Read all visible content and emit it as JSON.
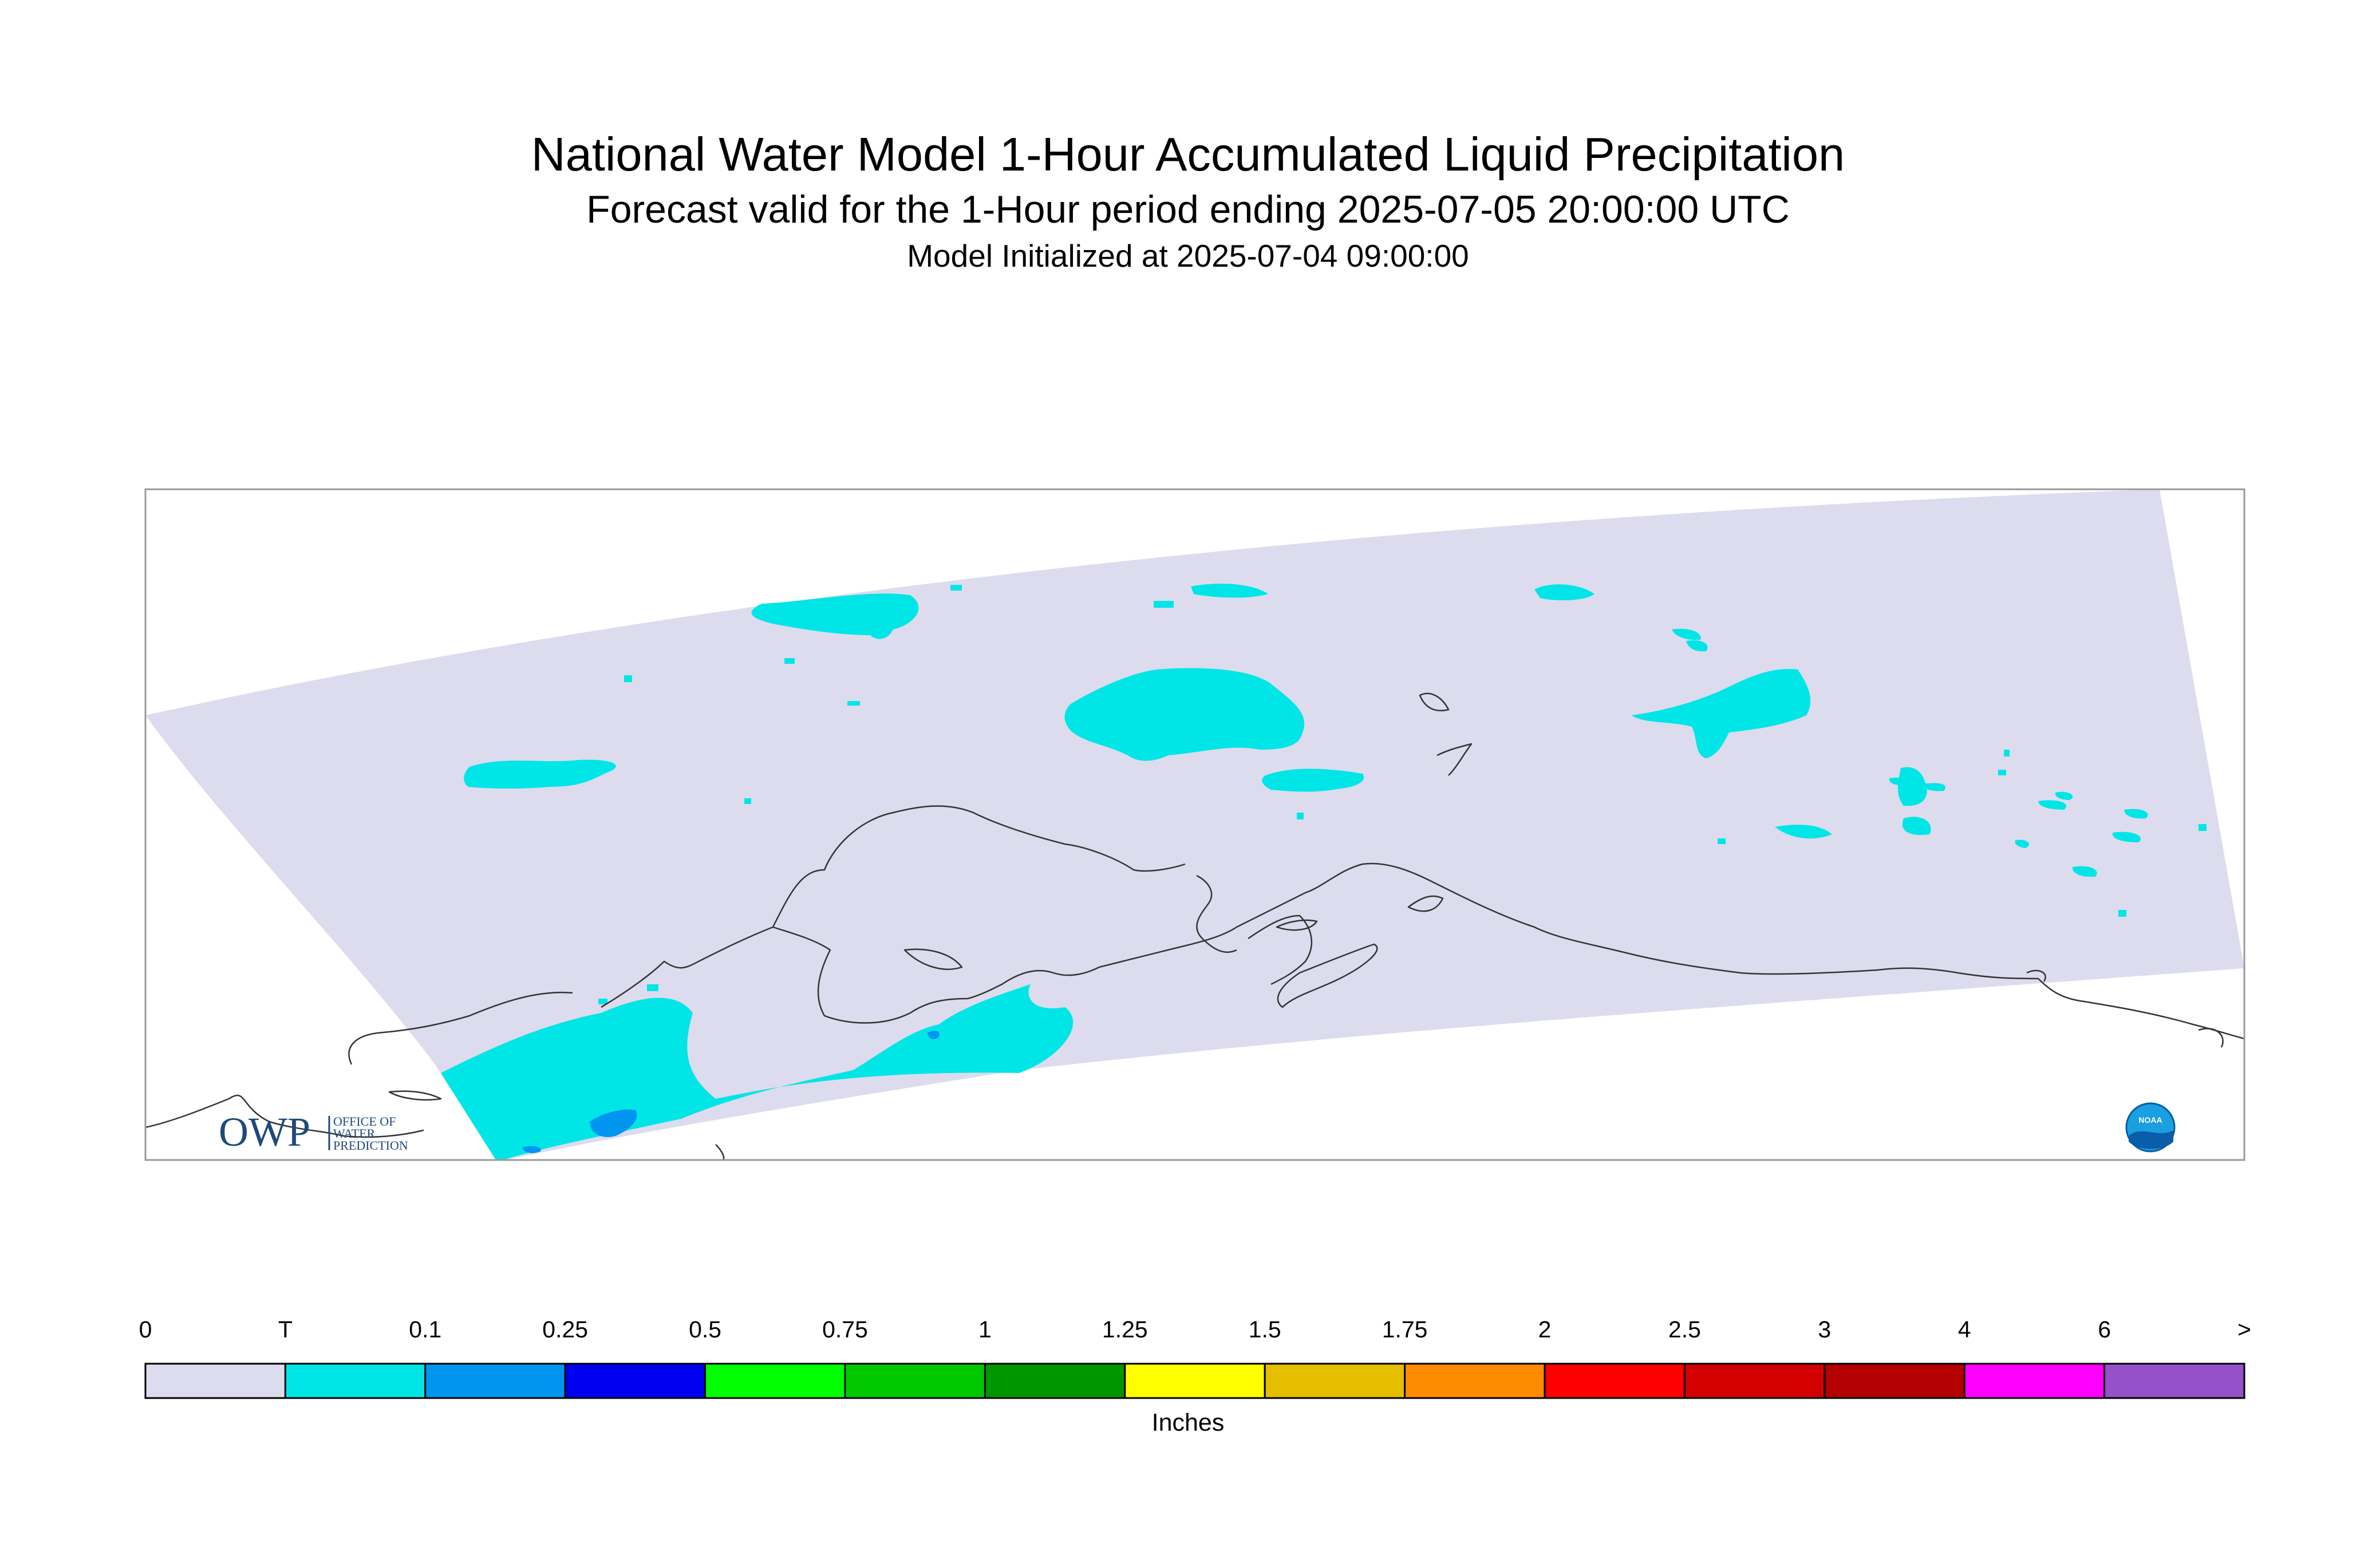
{
  "title": "National Water Model 1-Hour Accumulated Liquid Precipitation",
  "subtitle": "Forecast valid for the 1-Hour period ending 2025-07-05 20:00:00 UTC",
  "initialized": "Model Initialized at 2025-07-04 09:00:00",
  "logos": {
    "owp_mark": "OWP",
    "owp_line1": "OFFICE OF",
    "owp_line2": "WATER",
    "owp_line3": "PREDICTION",
    "noaa": "NOAA"
  },
  "colors": {
    "no_precip": "#dcdcee",
    "trace": "#00e6e6",
    "light": "#0096f0",
    "outline": "#333333"
  },
  "legend": {
    "units": "Inches",
    "labels": [
      "0",
      "T",
      "0.1",
      "0.25",
      "0.5",
      "0.75",
      "1",
      "1.25",
      "1.5",
      "1.75",
      "2",
      "2.5",
      "3",
      "4",
      "6",
      ">"
    ],
    "colors": [
      "#dcdcee",
      "#00e6e6",
      "#0096f0",
      "#0000f0",
      "#00ff00",
      "#00c800",
      "#009600",
      "#ffff00",
      "#e6be00",
      "#ff8c00",
      "#ff0000",
      "#d20000",
      "#b40000",
      "#ff00ff",
      "#9650c8"
    ]
  }
}
